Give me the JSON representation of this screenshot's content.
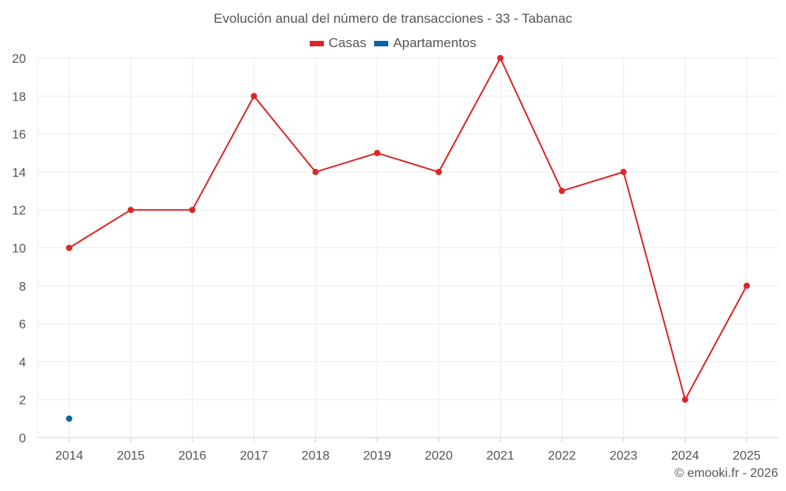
{
  "chart_data": {
    "type": "line",
    "title": "Evolución anual del número de transacciones - 33 - Tabanac",
    "xlabel": "",
    "ylabel": "",
    "categories": [
      "2014",
      "2015",
      "2016",
      "2017",
      "2018",
      "2019",
      "2020",
      "2021",
      "2022",
      "2023",
      "2024",
      "2025"
    ],
    "ylim": [
      0,
      20
    ],
    "yticks": [
      0,
      2,
      4,
      6,
      8,
      10,
      12,
      14,
      16,
      18,
      20
    ],
    "grid": true,
    "legend_position": "top-center",
    "series": [
      {
        "name": "Casas",
        "color": "#dc2626",
        "values": [
          10,
          12,
          12,
          18,
          14,
          15,
          14,
          20,
          13,
          14,
          2,
          8
        ]
      },
      {
        "name": "Apartamentos",
        "color": "#0b63a5",
        "values": [
          1,
          null,
          null,
          null,
          null,
          null,
          null,
          null,
          null,
          null,
          null,
          null
        ]
      }
    ]
  },
  "credit": "© emooki.fr - 2026"
}
